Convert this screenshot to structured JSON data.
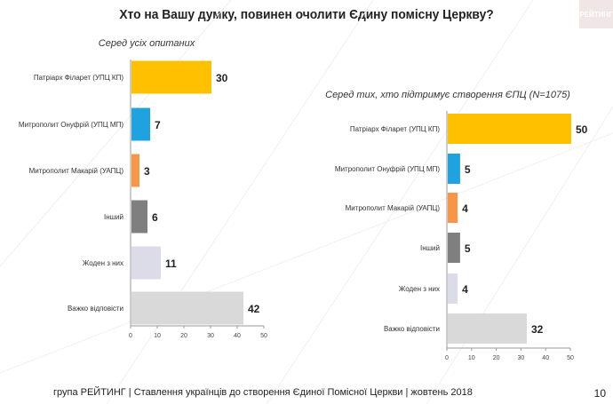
{
  "title": "Хто на Вашу думку, повинен очолити Єдину помісну Церкву?",
  "logo": "РЕЙТИНГ",
  "footer": "група РЕЙТИНГ | Ставлення українців до створення Єдиної Помісної Церкви | жовтень 2018",
  "page_number": "10",
  "chart_data": [
    {
      "type": "bar",
      "orientation": "horizontal",
      "title": "Серед усіх опитаних",
      "categories": [
        "Патріарх Філарет (УПЦ КП)",
        "Митрополит Онуфрій (УПЦ МП)",
        "Митрополит Макарій (УАПЦ)",
        "Інший",
        "Жоден з них",
        "Важко відповісти"
      ],
      "values": [
        30,
        7,
        3,
        6,
        11,
        42
      ],
      "colors": [
        "#FFC000",
        "#1FA3E0",
        "#F79646",
        "#7F7F7F",
        "#DCDCE8",
        "#D9D9D9"
      ],
      "xlim": [
        0,
        50
      ],
      "ticks": [
        0,
        10,
        20,
        30,
        40,
        50
      ],
      "grid": false
    },
    {
      "type": "bar",
      "orientation": "horizontal",
      "title": "Серед тих, хто підтримує створення ЄПЦ (N=1075)",
      "categories": [
        "Патріарх Філарет (УПЦ КП)",
        "Митрополит Онуфрій (УПЦ МП)",
        "Митрополит Макарій (УАПЦ)",
        "Інший",
        "Жоден з них",
        "Важко відповісти"
      ],
      "values": [
        50,
        5,
        4,
        5,
        4,
        32
      ],
      "colors": [
        "#FFC000",
        "#1FA3E0",
        "#F79646",
        "#7F7F7F",
        "#DCDCE8",
        "#D9D9D9"
      ],
      "xlim": [
        0,
        50
      ],
      "ticks": [
        0,
        10,
        20,
        30,
        40,
        50
      ],
      "grid": false
    }
  ]
}
